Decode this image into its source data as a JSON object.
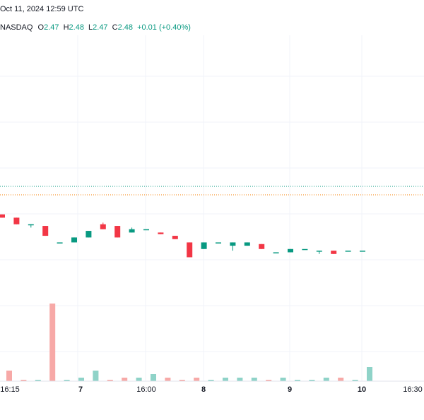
{
  "header": {
    "date_text": "Oct 11, 2024 12:59 UTC",
    "exchange": "NASDAQ",
    "o_label": "O",
    "o_value": "2.47",
    "h_label": "H",
    "h_value": "2.48",
    "l_label": "L",
    "l_value": "2.47",
    "c_label": "C",
    "c_value": "2.48",
    "change": "+0.01 (+0.40%)"
  },
  "colors": {
    "up": "#089981",
    "down": "#f23645",
    "vol_up": "#8fd3c8",
    "vol_down": "#f7a9a7",
    "grid": "#f0f3fa"
  },
  "chart_data": {
    "type": "candlestick",
    "xlabel": "",
    "ylabel": "",
    "x_ticks": [
      {
        "label": "16:15",
        "bold": false,
        "index": 0
      },
      {
        "label": "7",
        "bold": true,
        "index": 5
      },
      {
        "label": "16:00",
        "bold": false,
        "index": 10
      },
      {
        "label": "8",
        "bold": true,
        "index": 14
      },
      {
        "label": "9",
        "bold": true,
        "index": 20
      },
      {
        "label": "10",
        "bold": true,
        "index": 25
      },
      {
        "label": "16:30",
        "bold": false,
        "index": 28.5
      }
    ],
    "ylim": [
      2.0,
      2.46
    ],
    "reference_lines": [
      {
        "value": 2.44,
        "color": "#089981",
        "style": "dotted"
      },
      {
        "value": 2.43,
        "color": "#f57c00",
        "style": "dotted"
      }
    ],
    "candles": [
      {
        "o": 2.42,
        "h": 2.42,
        "l": 2.41,
        "c": 2.41
      },
      {
        "o": 2.41,
        "h": 2.41,
        "l": 2.39,
        "c": 2.39
      },
      {
        "o": 2.39,
        "h": 2.39,
        "l": 2.38,
        "c": 2.39
      },
      {
        "o": 2.385,
        "h": 2.385,
        "l": 2.355,
        "c": 2.355
      },
      {
        "o": 2.335,
        "h": 2.335,
        "l": 2.335,
        "c": 2.335
      },
      {
        "o": 2.335,
        "h": 2.35,
        "l": 2.335,
        "c": 2.35
      },
      {
        "o": 2.35,
        "h": 2.37,
        "l": 2.35,
        "c": 2.37
      },
      {
        "o": 2.39,
        "h": 2.395,
        "l": 2.375,
        "c": 2.375
      },
      {
        "o": 2.385,
        "h": 2.385,
        "l": 2.35,
        "c": 2.35
      },
      {
        "o": 2.365,
        "h": 2.38,
        "l": 2.365,
        "c": 2.375
      },
      {
        "o": 2.375,
        "h": 2.375,
        "l": 2.375,
        "c": 2.375
      },
      {
        "o": 2.365,
        "h": 2.365,
        "l": 2.36,
        "c": 2.36
      },
      {
        "o": 2.355,
        "h": 2.355,
        "l": 2.345,
        "c": 2.345
      },
      {
        "o": 2.335,
        "h": 2.335,
        "l": 2.29,
        "c": 2.29
      },
      {
        "o": 2.315,
        "h": 2.335,
        "l": 2.315,
        "c": 2.335
      },
      {
        "o": 2.335,
        "h": 2.335,
        "l": 2.335,
        "c": 2.335
      },
      {
        "o": 2.325,
        "h": 2.335,
        "l": 2.31,
        "c": 2.335
      },
      {
        "o": 2.325,
        "h": 2.335,
        "l": 2.325,
        "c": 2.335
      },
      {
        "o": 2.33,
        "h": 2.33,
        "l": 2.315,
        "c": 2.315
      },
      {
        "o": 2.305,
        "h": 2.305,
        "l": 2.305,
        "c": 2.305
      },
      {
        "o": 2.305,
        "h": 2.315,
        "l": 2.305,
        "c": 2.315
      },
      {
        "o": 2.315,
        "h": 2.315,
        "l": 2.315,
        "c": 2.315
      },
      {
        "o": 2.31,
        "h": 2.31,
        "l": 2.3,
        "c": 2.31
      },
      {
        "o": 2.31,
        "h": 2.31,
        "l": 2.3,
        "c": 2.3
      },
      {
        "o": 2.31,
        "h": 2.31,
        "l": 2.31,
        "c": 2.31
      },
      {
        "o": 2.31,
        "h": 2.31,
        "l": 2.31,
        "c": 2.31
      }
    ],
    "volume_note": "volumes rendered as bars in the bottom pane"
  }
}
